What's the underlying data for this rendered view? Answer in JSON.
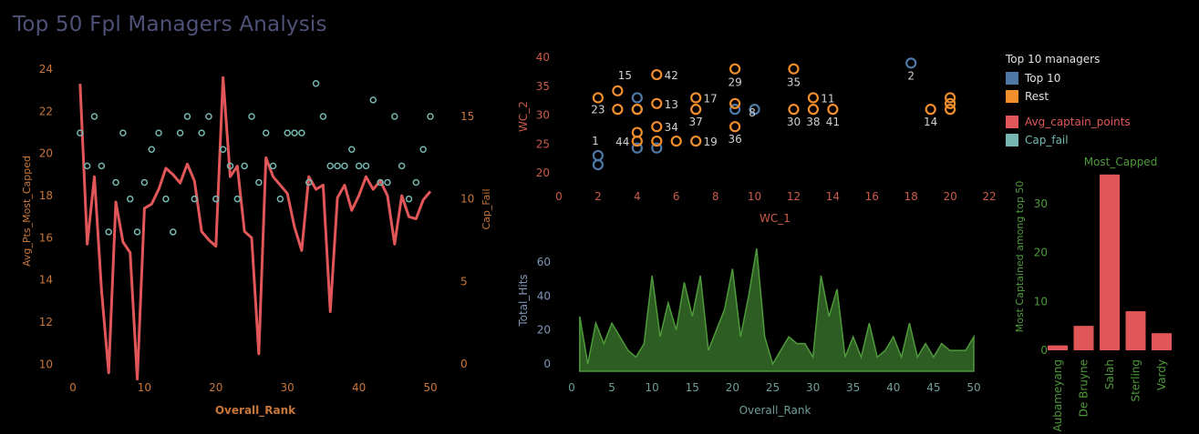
{
  "dashboard": {
    "title": "Top 50 Fpl Managers Analysis"
  },
  "colors": {
    "red": "#e15759",
    "teal": "#76b7b2",
    "orange": "#f28e2b",
    "blue": "#4e79a7",
    "green_fill": "#2e5d24",
    "green_line": "#4e9a3a",
    "axis_orange": "#c8763a",
    "axis_red": "#c95a4b",
    "axis_teal": "#6f9e98",
    "axis_blue": "#7f95b6",
    "axis_green": "#4e9a3a",
    "label": "#d0d0d0"
  },
  "legend": {
    "title": "Top 10 managers",
    "items": [
      {
        "label": "Top 10",
        "color": "#4e79a7",
        "text_color": "#e0e0e0"
      },
      {
        "label": "Rest",
        "color": "#f28e2b",
        "text_color": "#e0e0e0"
      },
      {
        "label": "Avg_captain_points",
        "color": "#e15759",
        "text_color": "#e15759"
      },
      {
        "label": "Cap_fail",
        "color": "#76b7b2",
        "text_color": "#76b7b2"
      }
    ]
  },
  "chart_data": [
    {
      "type": "line",
      "xlabel": "Overall_Rank",
      "ylabel": "Avg_Pts_Most_Capped",
      "y2label": "Cap_Fail",
      "xlim": [
        0,
        50
      ],
      "ylim": [
        9,
        24
      ],
      "y2lim": [
        0,
        17
      ],
      "x_ticks": [
        0,
        10,
        20,
        30,
        40,
        50
      ],
      "y_ticks": [
        10,
        12,
        14,
        16,
        18,
        20,
        22,
        24
      ],
      "y2_ticks": [
        0,
        5,
        10,
        15
      ],
      "series": [
        {
          "name": "Avg_captain_points",
          "x": [
            1,
            2,
            3,
            4,
            5,
            6,
            7,
            8,
            9,
            10,
            11,
            12,
            13,
            14,
            15,
            16,
            17,
            18,
            19,
            20,
            21,
            22,
            23,
            24,
            25,
            26,
            27,
            28,
            29,
            30,
            31,
            32,
            33,
            34,
            35,
            36,
            37,
            38,
            39,
            40,
            41,
            42,
            43,
            44,
            45,
            46,
            47,
            48,
            49,
            50
          ],
          "values": [
            23.3,
            15.7,
            18.9,
            13.5,
            9.6,
            17.7,
            15.8,
            15.3,
            9.3,
            17.4,
            17.6,
            18.3,
            19.3,
            19.0,
            18.6,
            19.5,
            18.7,
            16.3,
            15.9,
            15.6,
            23.6,
            18.9,
            19.4,
            16.3,
            16.0,
            10.5,
            19.8,
            18.9,
            18.5,
            18.1,
            16.5,
            15.4,
            18.9,
            18.3,
            18.5,
            12.5,
            17.9,
            18.5,
            17.3,
            18.0,
            18.9,
            18.3,
            18.7,
            18.0,
            15.7,
            18.0,
            17.0,
            16.9,
            17.8,
            18.2
          ]
        },
        {
          "name": "Cap_fail",
          "x": [
            1,
            2,
            3,
            4,
            5,
            6,
            7,
            8,
            9,
            10,
            11,
            12,
            13,
            14,
            15,
            16,
            17,
            18,
            19,
            20,
            21,
            22,
            23,
            24,
            25,
            26,
            27,
            28,
            29,
            30,
            31,
            32,
            33,
            34,
            35,
            36,
            37,
            38,
            39,
            40,
            41,
            42,
            43,
            44,
            45,
            46,
            47,
            48,
            49,
            50
          ],
          "values": [
            14,
            12,
            15,
            12,
            8,
            11,
            14,
            10,
            8,
            11,
            13,
            14,
            10,
            8,
            14,
            15,
            10,
            14,
            15,
            10,
            13,
            12,
            10,
            12,
            15,
            11,
            14,
            12,
            10,
            14,
            14,
            14,
            11,
            17,
            15,
            12,
            12,
            12,
            13,
            12,
            12,
            16,
            11,
            11,
            15,
            12,
            10,
            11,
            13,
            15
          ]
        }
      ]
    },
    {
      "type": "scatter",
      "xlabel": "WC_1",
      "ylabel": "WC_2",
      "xlim": [
        0,
        22
      ],
      "ylim": [
        18,
        41
      ],
      "x_ticks": [
        0,
        2,
        4,
        6,
        8,
        10,
        12,
        14,
        16,
        18,
        20,
        22
      ],
      "y_ticks": [
        20,
        25,
        30,
        35,
        40
      ],
      "points": [
        {
          "x": 2,
          "y": 23.0,
          "label": "1",
          "group": "Top 10"
        },
        {
          "x": 2,
          "y": 21.4,
          "label": "",
          "group": "Top 10"
        },
        {
          "x": 18,
          "y": 39.0,
          "label": "2",
          "group": "Top 10"
        },
        {
          "x": 4,
          "y": 33.0,
          "label": "",
          "group": "Top 10"
        },
        {
          "x": 4,
          "y": 31.0,
          "label": "",
          "group": "Top 10"
        },
        {
          "x": 4,
          "y": 24.3,
          "label": "",
          "group": "Top 10"
        },
        {
          "x": 5,
          "y": 24.3,
          "label": "",
          "group": "Top 10"
        },
        {
          "x": 9,
          "y": 31.0,
          "label": "8",
          "group": "Top 10"
        },
        {
          "x": 10,
          "y": 31.0,
          "label": "",
          "group": "Top 10"
        },
        {
          "x": 2,
          "y": 33.0,
          "label": "23",
          "group": "Rest"
        },
        {
          "x": 3,
          "y": 34.2,
          "label": "15",
          "group": "Rest"
        },
        {
          "x": 3,
          "y": 31.0,
          "label": "",
          "group": "Rest"
        },
        {
          "x": 4,
          "y": 31.0,
          "label": "",
          "group": "Rest"
        },
        {
          "x": 4,
          "y": 27.0,
          "label": "",
          "group": "Rest"
        },
        {
          "x": 4,
          "y": 25.5,
          "label": "44",
          "group": "Rest"
        },
        {
          "x": 5,
          "y": 37.0,
          "label": "42",
          "group": "Rest"
        },
        {
          "x": 5,
          "y": 32.0,
          "label": "13",
          "group": "Rest"
        },
        {
          "x": 5,
          "y": 28.0,
          "label": "34",
          "group": "Rest"
        },
        {
          "x": 5,
          "y": 25.5,
          "label": "",
          "group": "Rest"
        },
        {
          "x": 6,
          "y": 25.5,
          "label": "",
          "group": "Rest"
        },
        {
          "x": 7,
          "y": 33.0,
          "label": "17",
          "group": "Rest"
        },
        {
          "x": 7,
          "y": 31.0,
          "label": "37",
          "group": "Rest"
        },
        {
          "x": 7,
          "y": 25.5,
          "label": "19",
          "group": "Rest"
        },
        {
          "x": 9,
          "y": 38.0,
          "label": "29",
          "group": "Rest"
        },
        {
          "x": 9,
          "y": 32.0,
          "label": "",
          "group": "Rest"
        },
        {
          "x": 9,
          "y": 28.0,
          "label": "36",
          "group": "Rest"
        },
        {
          "x": 12,
          "y": 38.0,
          "label": "35",
          "group": "Rest"
        },
        {
          "x": 12,
          "y": 31.0,
          "label": "30",
          "group": "Rest"
        },
        {
          "x": 13,
          "y": 33.0,
          "label": "11",
          "group": "Rest"
        },
        {
          "x": 13,
          "y": 31.0,
          "label": "38",
          "group": "Rest"
        },
        {
          "x": 14,
          "y": 31.0,
          "label": "41",
          "group": "Rest"
        },
        {
          "x": 19,
          "y": 31.0,
          "label": "14",
          "group": "Rest"
        },
        {
          "x": 20,
          "y": 33.0,
          "label": "",
          "group": "Rest"
        },
        {
          "x": 20,
          "y": 32.0,
          "label": "",
          "group": "Rest"
        },
        {
          "x": 20,
          "y": 31.0,
          "label": "",
          "group": "Rest"
        }
      ]
    },
    {
      "type": "area",
      "xlabel": "Overall_Rank",
      "ylabel": "Total_Hits",
      "xlim": [
        0,
        50
      ],
      "ylim": [
        -4,
        72
      ],
      "x_ticks": [
        0,
        5,
        10,
        15,
        20,
        25,
        30,
        35,
        40,
        45,
        50
      ],
      "y_ticks": [
        0,
        20,
        40,
        60
      ],
      "series": [
        {
          "name": "Total_Hits",
          "x": [
            1,
            2,
            3,
            4,
            5,
            6,
            7,
            8,
            9,
            10,
            11,
            12,
            13,
            14,
            15,
            16,
            17,
            18,
            19,
            20,
            21,
            22,
            23,
            24,
            25,
            26,
            27,
            28,
            29,
            30,
            31,
            32,
            33,
            34,
            35,
            36,
            37,
            38,
            39,
            40,
            41,
            42,
            43,
            44,
            45,
            46,
            47,
            48,
            49,
            50
          ],
          "values": [
            28,
            0,
            24,
            12,
            24,
            16,
            8,
            4,
            12,
            52,
            16,
            36,
            20,
            48,
            28,
            52,
            8,
            20,
            32,
            56,
            16,
            40,
            68,
            16,
            0,
            8,
            16,
            12,
            12,
            4,
            52,
            28,
            44,
            4,
            16,
            4,
            24,
            4,
            8,
            16,
            4,
            24,
            4,
            12,
            4,
            12,
            8,
            8,
            8,
            16
          ]
        }
      ]
    },
    {
      "type": "bar",
      "title": "Most_Capped",
      "ylabel": "Most Captained among top 50",
      "categories": [
        "Aubameyang",
        "De Bruyne",
        "Salah",
        "Sterling",
        "Vardy"
      ],
      "values": [
        1,
        5,
        36,
        8,
        3.5
      ],
      "ylim": [
        -2,
        38
      ],
      "y_ticks": [
        0,
        10,
        20,
        30
      ]
    }
  ]
}
